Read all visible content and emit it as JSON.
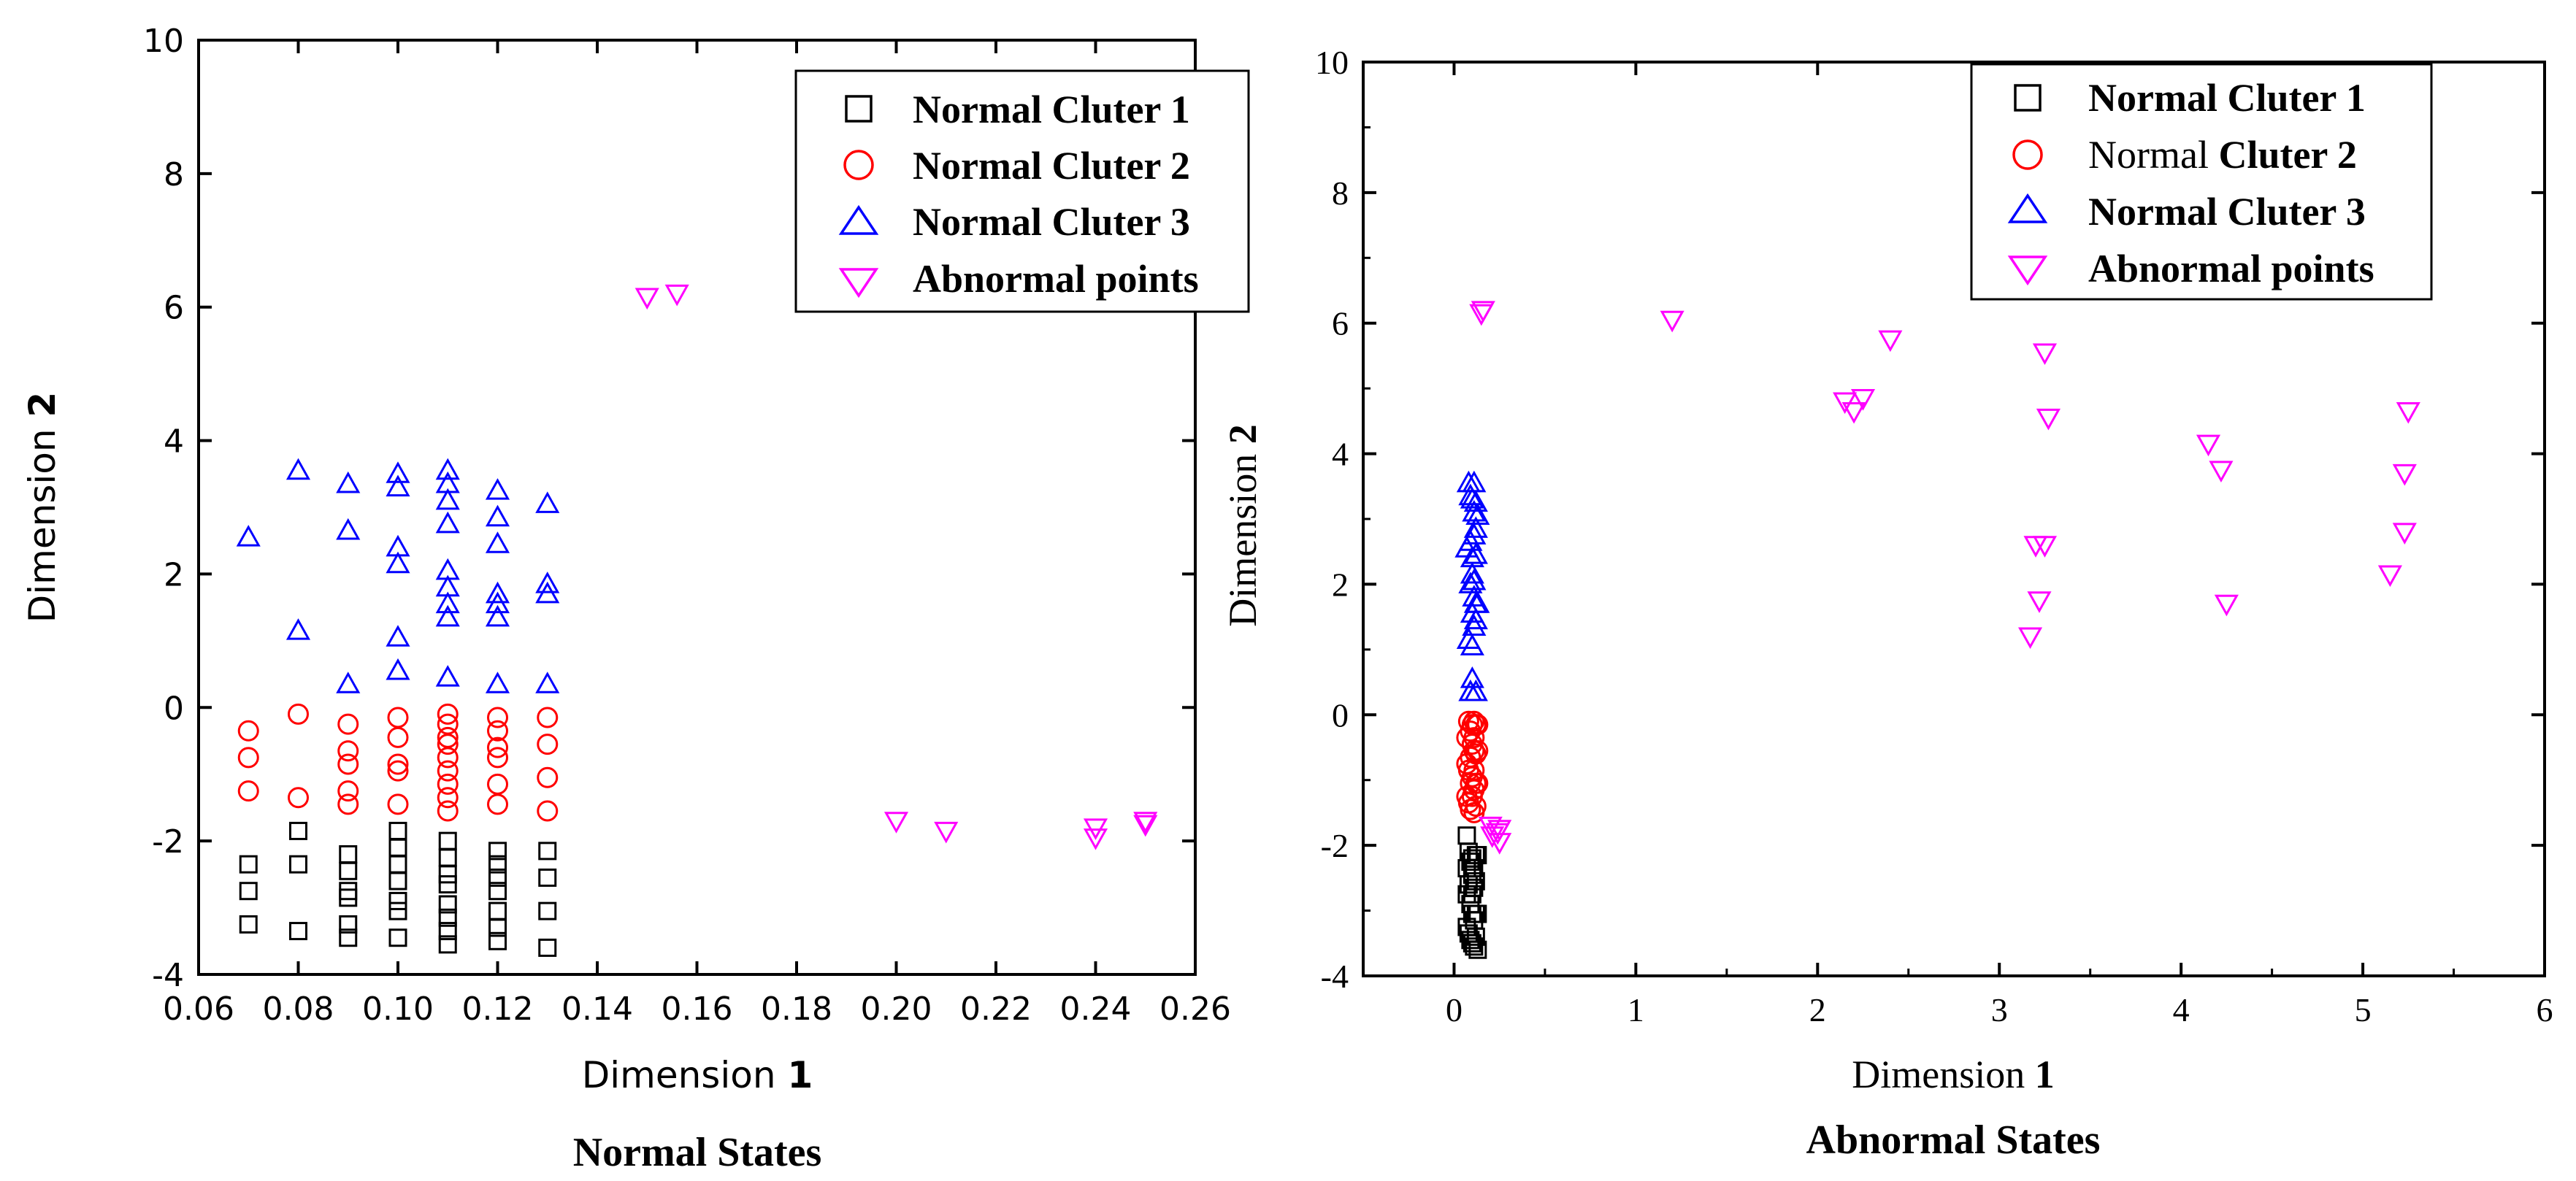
{
  "chart_data": [
    {
      "type": "scatter",
      "title": "Normal States",
      "xlabel": "Dimension",
      "xlabel_bold": "1",
      "ylabel": "Dimension",
      "ylabel_bold": "2",
      "xlim": [
        0.06,
        0.26
      ],
      "ylim": [
        -4,
        10
      ],
      "xticks": [
        "0.06",
        "0.08",
        "0.10",
        "0.12",
        "0.14",
        "0.16",
        "0.18",
        "0.20",
        "0.22",
        "0.24",
        "0.26"
      ],
      "yticks": [
        "-4",
        "-2",
        "0",
        "2",
        "4",
        "6",
        "8",
        "10"
      ],
      "legend_position": "top-right",
      "series": [
        {
          "name": "Normal Cluter 1",
          "marker": "square",
          "color": "#000000",
          "points": [
            [
              0.07,
              -2.35
            ],
            [
              0.07,
              -2.75
            ],
            [
              0.07,
              -3.25
            ],
            [
              0.08,
              -1.85
            ],
            [
              0.08,
              -2.35
            ],
            [
              0.08,
              -3.35
            ],
            [
              0.09,
              -2.2
            ],
            [
              0.09,
              -2.45
            ],
            [
              0.09,
              -2.75
            ],
            [
              0.09,
              -2.85
            ],
            [
              0.09,
              -3.25
            ],
            [
              0.09,
              -3.45
            ],
            [
              0.1,
              -1.85
            ],
            [
              0.1,
              -2.1
            ],
            [
              0.1,
              -2.35
            ],
            [
              0.1,
              -2.6
            ],
            [
              0.1,
              -2.9
            ],
            [
              0.1,
              -3.05
            ],
            [
              0.1,
              -3.45
            ],
            [
              0.11,
              -2.0
            ],
            [
              0.11,
              -2.25
            ],
            [
              0.11,
              -2.5
            ],
            [
              0.11,
              -2.65
            ],
            [
              0.11,
              -2.95
            ],
            [
              0.11,
              -3.15
            ],
            [
              0.11,
              -3.35
            ],
            [
              0.11,
              -3.55
            ],
            [
              0.12,
              -2.15
            ],
            [
              0.12,
              -2.35
            ],
            [
              0.12,
              -2.55
            ],
            [
              0.12,
              -2.75
            ],
            [
              0.12,
              -3.05
            ],
            [
              0.12,
              -3.3
            ],
            [
              0.12,
              -3.5
            ],
            [
              0.13,
              -2.15
            ],
            [
              0.13,
              -2.55
            ],
            [
              0.13,
              -3.05
            ],
            [
              0.13,
              -3.6
            ]
          ]
        },
        {
          "name": "Normal Cluter 2",
          "marker": "circle",
          "color": "#ff0000",
          "points": [
            [
              0.07,
              -0.35
            ],
            [
              0.07,
              -0.75
            ],
            [
              0.07,
              -1.25
            ],
            [
              0.08,
              -0.1
            ],
            [
              0.08,
              -1.35
            ],
            [
              0.09,
              -0.25
            ],
            [
              0.09,
              -0.65
            ],
            [
              0.09,
              -0.85
            ],
            [
              0.09,
              -1.25
            ],
            [
              0.09,
              -1.45
            ],
            [
              0.1,
              -0.15
            ],
            [
              0.1,
              -0.45
            ],
            [
              0.1,
              -0.85
            ],
            [
              0.1,
              -0.95
            ],
            [
              0.1,
              -1.45
            ],
            [
              0.11,
              -0.1
            ],
            [
              0.11,
              -0.25
            ],
            [
              0.11,
              -0.45
            ],
            [
              0.11,
              -0.55
            ],
            [
              0.11,
              -0.75
            ],
            [
              0.11,
              -0.95
            ],
            [
              0.11,
              -1.15
            ],
            [
              0.11,
              -1.35
            ],
            [
              0.11,
              -1.55
            ],
            [
              0.12,
              -0.15
            ],
            [
              0.12,
              -0.35
            ],
            [
              0.12,
              -0.6
            ],
            [
              0.12,
              -0.75
            ],
            [
              0.12,
              -1.15
            ],
            [
              0.12,
              -1.45
            ],
            [
              0.13,
              -0.15
            ],
            [
              0.13,
              -0.55
            ],
            [
              0.13,
              -1.05
            ],
            [
              0.13,
              -1.55
            ]
          ]
        },
        {
          "name": "Normal Cluter 3",
          "marker": "triangle-up",
          "color": "#0000ff",
          "points": [
            [
              0.07,
              2.55
            ],
            [
              0.08,
              1.15
            ],
            [
              0.08,
              3.55
            ],
            [
              0.09,
              0.35
            ],
            [
              0.09,
              2.65
            ],
            [
              0.09,
              3.35
            ],
            [
              0.1,
              0.55
            ],
            [
              0.1,
              1.05
            ],
            [
              0.1,
              2.15
            ],
            [
              0.1,
              2.4
            ],
            [
              0.1,
              3.3
            ],
            [
              0.1,
              3.5
            ],
            [
              0.11,
              0.45
            ],
            [
              0.11,
              1.35
            ],
            [
              0.11,
              1.55
            ],
            [
              0.11,
              1.8
            ],
            [
              0.11,
              2.05
            ],
            [
              0.11,
              2.75
            ],
            [
              0.11,
              3.1
            ],
            [
              0.11,
              3.35
            ],
            [
              0.11,
              3.55
            ],
            [
              0.12,
              0.35
            ],
            [
              0.12,
              1.35
            ],
            [
              0.12,
              1.55
            ],
            [
              0.12,
              1.7
            ],
            [
              0.12,
              2.45
            ],
            [
              0.12,
              2.85
            ],
            [
              0.12,
              3.25
            ],
            [
              0.13,
              0.35
            ],
            [
              0.13,
              1.7
            ],
            [
              0.13,
              1.85
            ],
            [
              0.13,
              3.05
            ]
          ]
        },
        {
          "name": "Abnormal points",
          "marker": "triangle-down",
          "color": "#ff00ff",
          "points": [
            [
              0.15,
              6.15
            ],
            [
              0.156,
              6.2
            ],
            [
              0.2,
              -1.7
            ],
            [
              0.21,
              -1.85
            ],
            [
              0.24,
              -1.8
            ],
            [
              0.24,
              -1.95
            ],
            [
              0.25,
              -1.7
            ],
            [
              0.25,
              -1.75
            ]
          ]
        }
      ]
    },
    {
      "type": "scatter",
      "title": "Abnormal States",
      "xlabel": "Dimension",
      "xlabel_bold": "1",
      "ylabel": "Dimension",
      "ylabel_bold": "2",
      "xlim": [
        -0.5,
        6
      ],
      "ylim": [
        -4,
        10
      ],
      "xticks": [
        "0",
        "1",
        "2",
        "3",
        "4",
        "5",
        "6"
      ],
      "yticks": [
        "-4",
        "-2",
        "0",
        "2",
        "4",
        "6",
        "8",
        "10"
      ],
      "legend_position": "top-right",
      "series": [
        {
          "name": "Normal Cluter 1",
          "marker": "square",
          "color": "#000000",
          "points": [
            [
              0.07,
              -1.85
            ],
            [
              0.07,
              -2.35
            ],
            [
              0.07,
              -2.75
            ],
            [
              0.07,
              -3.25
            ],
            [
              0.08,
              -2.1
            ],
            [
              0.08,
              -2.6
            ],
            [
              0.08,
              -3.35
            ],
            [
              0.09,
              -2.25
            ],
            [
              0.09,
              -2.9
            ],
            [
              0.09,
              -3.45
            ],
            [
              0.1,
              -2.2
            ],
            [
              0.1,
              -2.45
            ],
            [
              0.1,
              -2.75
            ],
            [
              0.1,
              -3.05
            ],
            [
              0.1,
              -3.5
            ],
            [
              0.11,
              -2.35
            ],
            [
              0.11,
              -2.65
            ],
            [
              0.11,
              -3.15
            ],
            [
              0.11,
              -3.55
            ],
            [
              0.12,
              -2.15
            ],
            [
              0.12,
              -2.55
            ],
            [
              0.12,
              -3.05
            ],
            [
              0.12,
              -3.4
            ],
            [
              0.13,
              -2.15
            ],
            [
              0.13,
              -3.05
            ],
            [
              0.13,
              -3.6
            ]
          ]
        },
        {
          "name": "Normal Cluter 2",
          "marker": "circle",
          "color": "#ff0000",
          "name_regular": "Normal",
          "name_bold": "Cluter 2",
          "points": [
            [
              0.07,
              -0.35
            ],
            [
              0.07,
              -0.75
            ],
            [
              0.07,
              -1.25
            ],
            [
              0.08,
              -0.1
            ],
            [
              0.08,
              -0.85
            ],
            [
              0.08,
              -1.35
            ],
            [
              0.09,
              -0.25
            ],
            [
              0.09,
              -0.65
            ],
            [
              0.09,
              -1.05
            ],
            [
              0.09,
              -1.45
            ],
            [
              0.1,
              -0.15
            ],
            [
              0.1,
              -0.45
            ],
            [
              0.1,
              -0.95
            ],
            [
              0.1,
              -1.25
            ],
            [
              0.11,
              -0.1
            ],
            [
              0.11,
              -0.35
            ],
            [
              0.11,
              -0.55
            ],
            [
              0.11,
              -0.85
            ],
            [
              0.11,
              -1.15
            ],
            [
              0.11,
              -1.5
            ],
            [
              0.12,
              -0.15
            ],
            [
              0.12,
              -0.6
            ],
            [
              0.12,
              -1.05
            ],
            [
              0.12,
              -1.4
            ],
            [
              0.13,
              -0.15
            ],
            [
              0.13,
              -0.55
            ],
            [
              0.13,
              -1.05
            ]
          ]
        },
        {
          "name": "Normal Cluter 3",
          "marker": "triangle-up",
          "color": "#0000ff",
          "points": [
            [
              0.07,
              2.55
            ],
            [
              0.08,
              1.15
            ],
            [
              0.08,
              3.55
            ],
            [
              0.09,
              0.35
            ],
            [
              0.09,
              2.0
            ],
            [
              0.09,
              2.65
            ],
            [
              0.09,
              3.35
            ],
            [
              0.1,
              0.55
            ],
            [
              0.1,
              1.05
            ],
            [
              0.1,
              1.55
            ],
            [
              0.1,
              2.15
            ],
            [
              0.1,
              2.4
            ],
            [
              0.1,
              3.3
            ],
            [
              0.11,
              1.35
            ],
            [
              0.11,
              1.8
            ],
            [
              0.11,
              2.05
            ],
            [
              0.11,
              2.75
            ],
            [
              0.11,
              3.1
            ],
            [
              0.11,
              3.55
            ],
            [
              0.12,
              0.35
            ],
            [
              0.12,
              1.45
            ],
            [
              0.12,
              1.7
            ],
            [
              0.12,
              2.45
            ],
            [
              0.12,
              2.85
            ],
            [
              0.12,
              3.25
            ],
            [
              0.13,
              1.7
            ],
            [
              0.13,
              3.05
            ]
          ]
        },
        {
          "name": "Abnormal points",
          "marker": "triangle-down",
          "color": "#ff00ff",
          "points": [
            [
              0.15,
              6.15
            ],
            [
              0.16,
              6.2
            ],
            [
              0.2,
              -1.7
            ],
            [
              0.21,
              -1.85
            ],
            [
              0.24,
              -1.8
            ],
            [
              0.25,
              -1.95
            ],
            [
              0.25,
              -1.75
            ],
            [
              1.2,
              6.05
            ],
            [
              2.15,
              4.8
            ],
            [
              2.2,
              4.65
            ],
            [
              2.25,
              4.85
            ],
            [
              2.4,
              5.75
            ],
            [
              3.17,
              1.2
            ],
            [
              3.2,
              2.6
            ],
            [
              3.22,
              1.75
            ],
            [
              3.25,
              2.6
            ],
            [
              3.25,
              5.55
            ],
            [
              3.27,
              4.55
            ],
            [
              4.15,
              4.15
            ],
            [
              4.22,
              3.75
            ],
            [
              4.25,
              1.7
            ],
            [
              5.15,
              2.15
            ],
            [
              5.23,
              3.7
            ],
            [
              5.23,
              2.8
            ],
            [
              5.25,
              4.65
            ]
          ]
        }
      ]
    }
  ]
}
